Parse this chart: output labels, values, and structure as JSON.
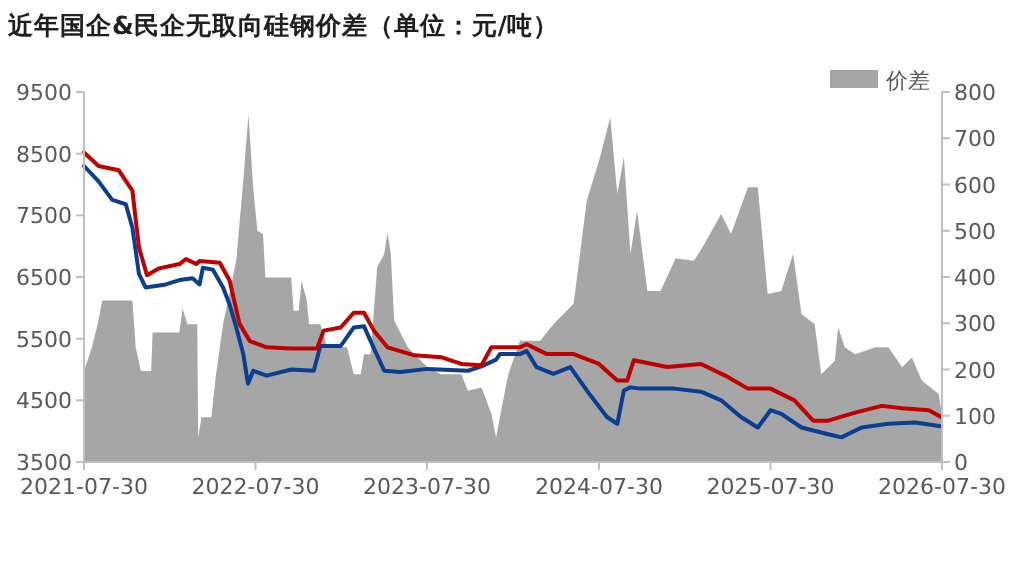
{
  "chart_data": {
    "type": "line",
    "title": "近年国企&民企无取向硅钢价差（单位：元/吨）",
    "xlim": [
      "2021-07-30",
      "2026-07-30"
    ],
    "xticks": [
      "2021-07-30",
      "2022-07-30",
      "2023-07-30",
      "2024-07-30",
      "2025-07-30",
      "2026-07-30"
    ],
    "ylim": [
      3500,
      9500
    ],
    "yticks": [
      3500,
      4500,
      5500,
      6500,
      7500,
      8500,
      9500
    ],
    "y2lim": [
      0,
      800
    ],
    "y2ticks": [
      0,
      100,
      200,
      300,
      400,
      500,
      600,
      700,
      800
    ],
    "legend": "top right",
    "series": [
      {
        "name": "价差",
        "type": "area",
        "axis": "y2",
        "color": "#a6a6a6",
        "x": [
          "2021-07-30",
          "2021-08-16",
          "2021-08-28",
          "2021-09-07",
          "2021-11-10",
          "2021-11-17",
          "2021-11-28",
          "2021-12-20",
          "2021-12-23",
          "2022-02-18",
          "2022-02-25",
          "2022-03-07",
          "2022-03-28",
          "2022-03-30",
          "2022-04-06",
          "2022-04-27",
          "2022-05-07",
          "2022-05-22",
          "2022-06-19",
          "2022-07-04",
          "2022-07-15",
          "2022-07-25",
          "2022-08-03",
          "2022-08-15",
          "2022-08-20",
          "2022-10-14",
          "2022-10-19",
          "2022-10-30",
          "2022-11-05",
          "2022-11-16",
          "2022-11-21",
          "2022-12-15",
          "2022-12-29",
          "2023-02-10",
          "2023-02-24",
          "2023-03-11",
          "2023-03-18",
          "2023-04-01",
          "2023-04-15",
          "2023-04-30",
          "2023-05-07",
          "2023-05-14",
          "2023-05-21",
          "2023-06-19",
          "2023-07-03",
          "2023-07-31",
          "2023-08-29",
          "2023-10-11",
          "2023-10-25",
          "2023-11-23",
          "2023-12-14",
          "2023-12-24",
          "2024-01-05",
          "2024-01-19",
          "2024-02-13",
          "2024-03-27",
          "2024-04-24",
          "2024-06-06",
          "2024-07-04",
          "2024-07-30",
          "2024-08-23",
          "2024-09-07",
          "2024-09-21",
          "2024-10-05",
          "2024-10-19",
          "2024-11-10",
          "2024-12-08",
          "2025-01-09",
          "2025-02-17",
          "2025-03-11",
          "2025-04-16",
          "2025-05-07",
          "2025-06-12",
          "2025-07-03",
          "2025-07-24",
          "2025-08-22",
          "2025-09-16",
          "2025-10-04",
          "2025-11-01",
          "2025-11-15",
          "2025-12-14",
          "2025-12-21",
          "2026-01-04",
          "2026-01-26",
          "2026-03-10",
          "2026-04-07",
          "2026-05-06",
          "2026-05-27",
          "2026-06-17",
          "2026-07-23",
          "2026-07-30"
        ],
        "values": [
          197,
          248,
          298,
          349,
          349,
          248,
          197,
          197,
          280,
          280,
          332,
          298,
          298,
          53,
          97,
          97,
          190,
          298,
          435,
          608,
          752,
          594,
          500,
          493,
          399,
          399,
          327,
          327,
          392,
          349,
          298,
          298,
          248,
          248,
          190,
          190,
          233,
          233,
          421,
          450,
          496,
          450,
          306,
          248,
          233,
          205,
          190,
          190,
          154,
          161,
          104,
          53,
          118,
          190,
          262,
          262,
          298,
          342,
          565,
          651,
          745,
          580,
          659,
          450,
          543,
          370,
          370,
          440,
          435,
          471,
          536,
          493,
          594,
          594,
          363,
          370,
          450,
          320,
          298,
          190,
          219,
          291,
          248,
          233,
          248,
          248,
          205,
          226,
          176,
          147,
          104
        ]
      },
      {
        "color": "#0b3d91",
        "x": [
          "2021-07-30",
          "2021-08-30",
          "2021-09-28",
          "2021-10-27",
          "2021-11-10",
          "2021-11-24",
          "2021-12-08",
          "2022-01-20",
          "2022-02-18",
          "2022-03-18",
          "2022-04-02",
          "2022-04-09",
          "2022-04-30",
          "2022-05-22",
          "2022-06-05",
          "2022-06-19",
          "2022-07-04",
          "2022-07-14",
          "2022-07-25",
          "2022-08-23",
          "2022-10-14",
          "2022-12-01",
          "2022-12-15",
          "2023-01-27",
          "2023-02-24",
          "2023-03-18",
          "2023-04-01",
          "2023-04-30",
          "2023-06-04",
          "2023-07-31",
          "2023-10-25",
          "2023-11-23",
          "2023-12-24",
          "2024-01-01",
          "2024-02-13",
          "2024-02-27",
          "2024-03-19",
          "2024-04-24",
          "2024-05-30",
          "2024-07-04",
          "2024-08-16",
          "2024-09-07",
          "2024-09-21",
          "2024-10-05",
          "2024-10-26",
          "2025-01-06",
          "2025-03-04",
          "2025-04-16",
          "2025-05-28",
          "2025-07-03",
          "2025-07-30",
          "2025-08-22",
          "2025-10-04",
          "2025-11-30",
          "2025-12-28",
          "2026-02-09",
          "2026-04-07",
          "2026-06-03",
          "2026-07-28"
        ],
        "values": [
          8300,
          8050,
          7750,
          7680,
          7300,
          6550,
          6330,
          6380,
          6450,
          6480,
          6380,
          6650,
          6620,
          6330,
          6050,
          5680,
          5250,
          4770,
          4980,
          4900,
          5000,
          4980,
          5380,
          5380,
          5680,
          5700,
          5460,
          4980,
          4960,
          5010,
          4980,
          5050,
          5160,
          5250,
          5250,
          5300,
          5040,
          4930,
          5040,
          4660,
          4230,
          4120,
          4660,
          4710,
          4690,
          4690,
          4640,
          4500,
          4230,
          4060,
          4340,
          4280,
          4060,
          3950,
          3900,
          4060,
          4120,
          4140,
          4080
        ]
      },
      {
        "color": "#c00000",
        "x": [
          "2021-07-30",
          "2021-08-30",
          "2021-10-12",
          "2021-11-10",
          "2021-11-24",
          "2021-12-11",
          "2022-01-06",
          "2022-02-18",
          "2022-03-04",
          "2022-03-26",
          "2022-04-02",
          "2022-05-15",
          "2022-06-05",
          "2022-06-26",
          "2022-07-18",
          "2022-08-23",
          "2022-10-14",
          "2022-12-08",
          "2022-12-22",
          "2023-01-27",
          "2023-02-24",
          "2023-03-18",
          "2023-04-08",
          "2023-05-07",
          "2023-07-03",
          "2023-08-29",
          "2023-10-11",
          "2023-11-23",
          "2023-12-14",
          "2024-02-13",
          "2024-02-27",
          "2024-04-10",
          "2024-06-06",
          "2024-07-30",
          "2024-09-07",
          "2024-09-28",
          "2024-10-12",
          "2024-12-22",
          "2025-03-04",
          "2025-04-30",
          "2025-06-12",
          "2025-07-30",
          "2025-09-19",
          "2025-10-29",
          "2025-11-30",
          "2026-01-26",
          "2026-03-24",
          "2026-05-06",
          "2026-07-02",
          "2026-07-28"
        ],
        "values": [
          8520,
          8300,
          8230,
          7900,
          6980,
          6530,
          6640,
          6710,
          6790,
          6710,
          6760,
          6730,
          6440,
          5740,
          5460,
          5360,
          5340,
          5340,
          5630,
          5680,
          5920,
          5920,
          5630,
          5360,
          5230,
          5200,
          5090,
          5070,
          5360,
          5360,
          5410,
          5250,
          5250,
          5090,
          4820,
          4820,
          5150,
          5040,
          5090,
          4880,
          4690,
          4690,
          4500,
          4170,
          4170,
          4300,
          4410,
          4370,
          4340,
          4230
        ]
      }
    ]
  }
}
